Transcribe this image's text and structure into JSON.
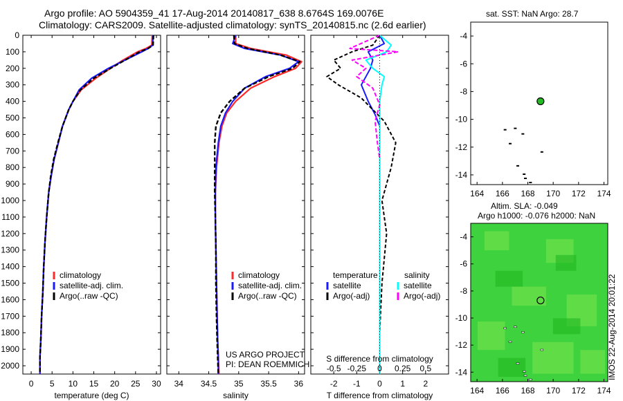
{
  "header": {
    "line1": "Argo profile: AO 5904359_41 17-Aug-2014 20140817_638 8.6764S 169.0076E",
    "line2": "Climatology: CARS2009. Satellite-adjusted climatology: synTS_20140815.nc (2.6d earlier)"
  },
  "colors": {
    "climatology": "#ff2a2a",
    "satellite": "#1a1aff",
    "argo": "#000000",
    "sal_satellite": "#00ffff",
    "sal_argo": "#ff00ff",
    "marker": "#22bb22",
    "map_green": "#3ed33e"
  },
  "depth_axis": {
    "ylim": [
      0,
      2050
    ],
    "ticks": [
      "0",
      "100",
      "200",
      "300",
      "400",
      "500",
      "600",
      "700",
      "800",
      "900",
      "1000",
      "1100",
      "1200",
      "1300",
      "1400",
      "1500",
      "1600",
      "1700",
      "1800",
      "1900",
      "2000"
    ]
  },
  "chart_data": [
    {
      "type": "line",
      "id": "temperature",
      "xlabel": "temperature (deg C)",
      "xlim": [
        -2,
        31
      ],
      "xticks": [
        "0",
        "5",
        "10",
        "15",
        "20",
        "25",
        "30"
      ],
      "legend": [
        "climatology",
        "satellite-adj. clim.",
        "Argo(..raw -QC)"
      ],
      "series": [
        {
          "name": "climatology",
          "x": [
            29.0,
            28.9,
            27.5,
            25.5,
            22.0,
            19.0,
            15.5,
            12.0,
            10.0,
            9.0,
            7.5,
            6.5,
            5.5,
            4.8,
            4.2,
            3.7,
            3.3,
            3.0,
            2.8,
            2.5,
            2.3,
            2.1,
            2.1
          ],
          "y": [
            0,
            60,
            80,
            100,
            150,
            200,
            260,
            330,
            400,
            450,
            550,
            650,
            750,
            850,
            950,
            1100,
            1250,
            1400,
            1550,
            1700,
            1850,
            1950,
            2050
          ]
        },
        {
          "name": "satellite-adj. clim.",
          "x": [
            29.2,
            29.1,
            28.0,
            26.5,
            22.5,
            18.5,
            14.5,
            11.5,
            10.0,
            9.0,
            7.5,
            6.5,
            5.5,
            4.8,
            4.2,
            3.7,
            3.3,
            3.0,
            2.8,
            2.5,
            2.3,
            2.1,
            2.1
          ],
          "y": [
            0,
            60,
            80,
            100,
            150,
            200,
            260,
            330,
            400,
            450,
            550,
            650,
            750,
            850,
            950,
            1100,
            1250,
            1400,
            1550,
            1700,
            1850,
            1950,
            2050
          ]
        },
        {
          "name": "Argo(..raw -QC)",
          "x": [
            29.3,
            29.2,
            28.0,
            26.0,
            22.5,
            19.0,
            15.0,
            11.8,
            10.0,
            9.0,
            7.5,
            6.4,
            5.4,
            4.7,
            4.2,
            3.7,
            3.3,
            3.0,
            2.8,
            2.5,
            2.3,
            2.1,
            2.1
          ],
          "y": [
            0,
            60,
            80,
            100,
            150,
            200,
            260,
            330,
            400,
            450,
            550,
            650,
            750,
            850,
            950,
            1100,
            1250,
            1400,
            1550,
            1700,
            1850,
            1950,
            2050
          ]
        }
      ]
    },
    {
      "type": "line",
      "id": "salinity",
      "xlabel": "salinity",
      "xlim": [
        33.8,
        36.1
      ],
      "xticks": [
        "34",
        "34.5",
        "35",
        "35.5",
        "36"
      ],
      "legend": [
        "climatology",
        "satellite-adj. clim.",
        "Argo(..raw -QC)"
      ],
      "annotation": [
        "US ARGO PROJECT",
        "PI: DEAN ROEMMICH"
      ],
      "series": [
        {
          "name": "climatology",
          "x": [
            34.95,
            34.95,
            35.2,
            35.8,
            36.05,
            35.95,
            35.6,
            35.2,
            34.95,
            34.8,
            34.72,
            34.67,
            34.63,
            34.61,
            34.61,
            34.62,
            34.63,
            34.64,
            34.65,
            34.66,
            34.67
          ],
          "y": [
            0,
            50,
            80,
            120,
            160,
            200,
            250,
            320,
            400,
            470,
            550,
            650,
            800,
            950,
            1100,
            1300,
            1500,
            1700,
            1850,
            1950,
            2050
          ]
        },
        {
          "name": "satellite-adj. clim.",
          "x": [
            34.95,
            34.9,
            35.1,
            35.7,
            36.0,
            35.85,
            35.45,
            35.1,
            34.9,
            34.78,
            34.7,
            34.66,
            34.62,
            34.61,
            34.61,
            34.62,
            34.63,
            34.64,
            34.65,
            34.66,
            34.66
          ],
          "y": [
            0,
            50,
            80,
            120,
            160,
            200,
            250,
            320,
            400,
            470,
            550,
            650,
            800,
            950,
            1100,
            1300,
            1500,
            1700,
            1850,
            1950,
            2050
          ]
        },
        {
          "name": "Argo(..raw -QC)",
          "x": [
            34.92,
            34.93,
            35.15,
            35.7,
            36.02,
            35.9,
            35.5,
            35.1,
            34.85,
            34.7,
            34.62,
            34.6,
            34.6,
            34.6,
            34.61,
            34.62,
            34.62,
            34.63,
            34.64,
            34.65,
            34.66
          ],
          "y": [
            0,
            50,
            80,
            120,
            160,
            200,
            250,
            320,
            400,
            470,
            550,
            650,
            800,
            950,
            1100,
            1300,
            1500,
            1700,
            1850,
            1950,
            2050
          ]
        }
      ]
    },
    {
      "type": "line",
      "id": "difference",
      "xlabel": "T difference from climatology",
      "xlabel_top": "S difference from climatology",
      "xlim": [
        -3,
        3
      ],
      "xticks": [
        "-2",
        "-1",
        "0",
        "1",
        "2"
      ],
      "xticks_s": [
        "-0.5",
        "-0.25",
        "0",
        "0.25",
        "0.5"
      ],
      "legend_t_title": "temperature",
      "legend_s_title": "salinity",
      "legend": [
        "satellite",
        "Argo(-adj)",
        "satellite",
        "Argo(-adj)"
      ],
      "series": [
        {
          "name": "temperature satellite",
          "x": [
            0.0,
            0.2,
            -0.5,
            -0.3,
            -0.4,
            -0.6,
            -0.8,
            -0.5,
            -0.2,
            0.0,
            0.0,
            0.0,
            0.0,
            0.0,
            0.0,
            0.0
          ],
          "y": [
            0,
            50,
            100,
            150,
            200,
            250,
            300,
            400,
            480,
            550,
            700,
            900,
            1200,
            1500,
            1800,
            2050
          ]
        },
        {
          "name": "temperature Argo(-adj)",
          "x": [
            0.0,
            -0.3,
            -1.2,
            -2.0,
            -1.7,
            -2.3,
            -1.8,
            -0.8,
            -0.3,
            0.2,
            0.7,
            0.5,
            0.1,
            0.3,
            0.1,
            0.0,
            0.0
          ],
          "y": [
            0,
            60,
            100,
            150,
            200,
            250,
            300,
            380,
            450,
            520,
            650,
            800,
            1000,
            1200,
            1500,
            1800,
            2050
          ]
        },
        {
          "name": "salinity satellite",
          "x": [
            0.0,
            0.5,
            0.3,
            -0.6,
            -0.3,
            0.2,
            0.1,
            0.0,
            0.0,
            0.0,
            0.0,
            0.0,
            0.0
          ],
          "y": [
            0,
            60,
            100,
            150,
            200,
            250,
            300,
            400,
            500,
            700,
            1000,
            1500,
            2050
          ]
        },
        {
          "name": "salinity Argo(-adj)",
          "x": [
            0.0,
            -1.3,
            0.8,
            -1.2,
            -0.6,
            -1.0,
            -0.3,
            0.0,
            -0.2,
            -0.1,
            0.0
          ],
          "y": [
            0,
            80,
            100,
            150,
            200,
            250,
            320,
            420,
            520,
            650,
            750
          ]
        }
      ]
    }
  ],
  "map_sst": {
    "title": "sat. SST: NaN Argo: 28.7",
    "xticks": [
      "164",
      "166",
      "168",
      "170",
      "172",
      "174"
    ],
    "yticks": [
      "-4",
      "-6",
      "-8",
      "-10",
      "-12",
      "-14"
    ],
    "marker_lon": 169.0,
    "marker_lat": -8.7
  },
  "map_sla": {
    "title1": "Altim. SLA: -0.049",
    "title2": "Argo h1000: -0.076 h2000: NaN",
    "xticks": [
      "164",
      "166",
      "168",
      "170",
      "172",
      "174"
    ],
    "yticks": [
      "-4",
      "-6",
      "-8",
      "-10",
      "-12",
      "-14"
    ],
    "marker_lon": 169.0,
    "marker_lat": -8.7
  },
  "stamp": "IMOS 22-Aug-2014 20:01:22"
}
